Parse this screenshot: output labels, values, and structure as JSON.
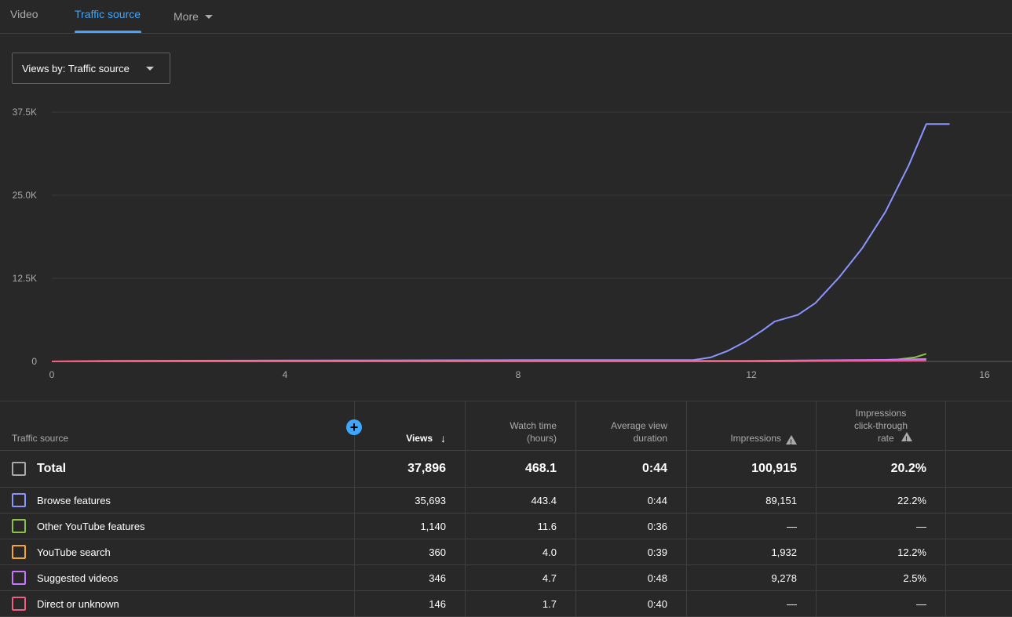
{
  "tabs": [
    {
      "label": "Video"
    },
    {
      "label": "Traffic source"
    },
    {
      "label": "More"
    }
  ],
  "dropdown": {
    "label": "Views by: Traffic source"
  },
  "chart_data": {
    "type": "line",
    "title": "",
    "xlabel": "",
    "ylabel": "",
    "xlim": [
      0,
      16
    ],
    "ylim": [
      0,
      37500
    ],
    "x_ticks": [
      "0",
      "4",
      "8",
      "12",
      "16"
    ],
    "y_ticks": [
      "37.5K",
      "25.0K",
      "12.5K",
      "0"
    ],
    "grid": true,
    "series": [
      {
        "name": "Browse features",
        "color": "#8c94ff",
        "x": [
          0,
          1,
          8.4,
          11,
          11.3,
          11.6,
          11.9,
          12.2,
          12.4,
          12.8,
          13.1,
          13.5,
          13.9,
          14.3,
          14.7,
          15.0,
          15.4
        ],
        "y": [
          0,
          100,
          200,
          200,
          600,
          1600,
          3000,
          4700,
          6000,
          7000,
          8800,
          12600,
          17000,
          22500,
          29500,
          35693,
          35693
        ]
      },
      {
        "name": "Other YouTube features",
        "color": "#8bc34a",
        "x": [
          0,
          12,
          14.0,
          14.5,
          14.8,
          15.0
        ],
        "y": [
          0,
          0,
          150,
          300,
          600,
          1140
        ]
      },
      {
        "name": "YouTube search",
        "color": "#f6a62b",
        "x": [
          0,
          12,
          13.5,
          14.5,
          15.0
        ],
        "y": [
          0,
          0,
          100,
          250,
          360
        ]
      },
      {
        "name": "Suggested videos",
        "color": "#c876ff",
        "x": [
          0,
          1,
          8.4,
          12.0,
          14.5,
          15.0
        ],
        "y": [
          0,
          50,
          100,
          100,
          250,
          346
        ]
      },
      {
        "name": "Direct or unknown",
        "color": "#f45d7f",
        "x": [
          0,
          12,
          14.5,
          15.0
        ],
        "y": [
          0,
          0,
          100,
          146
        ]
      }
    ]
  },
  "table": {
    "headers": {
      "source": "Traffic source",
      "views": "Views",
      "watch_time_1": "Watch time",
      "watch_time_2": "(hours)",
      "avg_1": "Average view",
      "avg_2": "duration",
      "impressions": "Impressions",
      "ctr_1": "Impressions",
      "ctr_2": "click-through",
      "ctr_3": "rate"
    },
    "add_icon": "+",
    "sort_icon": "↓",
    "total": {
      "label": "Total",
      "views": "37,896",
      "watch": "468.1",
      "avg": "0:44",
      "impressions": "100,915",
      "ctr": "20.2%"
    },
    "rows": [
      {
        "label": "Browse features",
        "color": "#8c94ff",
        "views": "35,693",
        "watch": "443.4",
        "avg": "0:44",
        "impressions": "89,151",
        "ctr": "22.2%"
      },
      {
        "label": "Other YouTube features",
        "color": "#8bc34a",
        "views": "1,140",
        "watch": "11.6",
        "avg": "0:36",
        "impressions": "—",
        "ctr": "—"
      },
      {
        "label": "YouTube search",
        "color": "#f6a62b",
        "views": "360",
        "watch": "4.0",
        "avg": "0:39",
        "impressions": "1,932",
        "ctr": "12.2%"
      },
      {
        "label": "Suggested videos",
        "color": "#c876ff",
        "views": "346",
        "watch": "4.7",
        "avg": "0:48",
        "impressions": "9,278",
        "ctr": "2.5%"
      },
      {
        "label": "Direct or unknown",
        "color": "#f45d7f",
        "views": "146",
        "watch": "1.7",
        "avg": "0:40",
        "impressions": "—",
        "ctr": "—"
      }
    ]
  }
}
